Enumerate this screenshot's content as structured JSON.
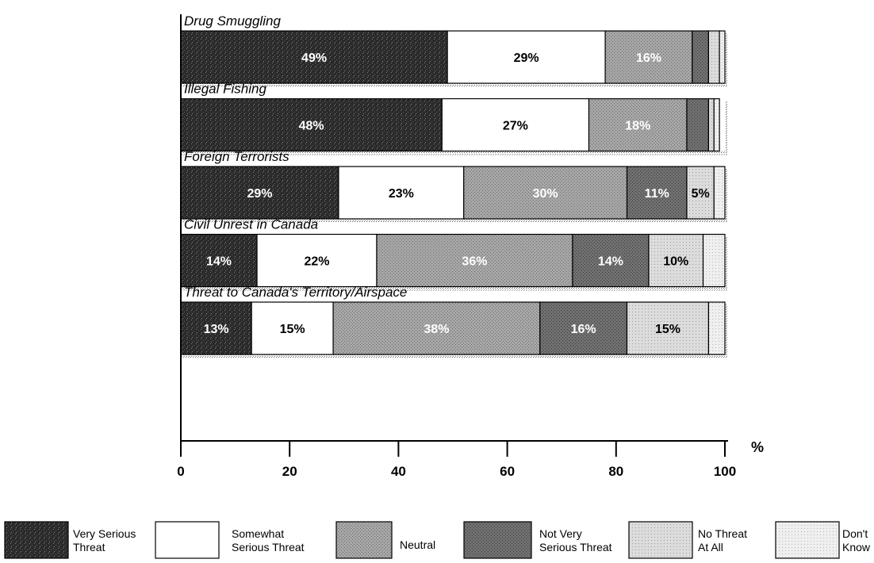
{
  "chart_data": {
    "type": "bar",
    "orientation": "horizontal",
    "stacked": true,
    "categories": [
      "Drug Smuggling",
      "Illegal Fishing",
      "Foreign Terrorists",
      "Civil Unrest in Canada",
      "Threat to Canada's Territory/Airspace"
    ],
    "series": [
      {
        "name": "Very Serious Threat",
        "values": [
          49,
          48,
          29,
          14,
          13
        ],
        "color": "#2b2b2b"
      },
      {
        "name": "Somewhat Serious Threat",
        "values": [
          29,
          27,
          23,
          22,
          15
        ],
        "color": "#ffffff"
      },
      {
        "name": "Neutral",
        "values": [
          16,
          18,
          30,
          36,
          38
        ],
        "color": "#9a9a9a"
      },
      {
        "name": "Not Very Serious Threat",
        "values": [
          3,
          4,
          11,
          14,
          16
        ],
        "color": "#6a6a6a"
      },
      {
        "name": "No Threat At All",
        "values": [
          2,
          1,
          5,
          10,
          15
        ],
        "color": "#d6d6d6"
      },
      {
        "name": "Don't Know",
        "values": [
          1,
          1,
          2,
          4,
          3
        ],
        "color": "#ececec"
      }
    ],
    "data_labels": [
      [
        "49%",
        "29%",
        "16%",
        "",
        "",
        ""
      ],
      [
        "48%",
        "27%",
        "18%",
        "",
        "",
        ""
      ],
      [
        "29%",
        "23%",
        "30%",
        "11%",
        "5%",
        ""
      ],
      [
        "14%",
        "22%",
        "36%",
        "14%",
        "10%",
        ""
      ],
      [
        "13%",
        "15%",
        "38%",
        "16%",
        "15%",
        ""
      ]
    ],
    "xticks": [
      "0",
      "20",
      "40",
      "60",
      "80",
      "100"
    ],
    "xlim": [
      0,
      100
    ],
    "unit_label": "%",
    "legend_position": "bottom",
    "legend": [
      {
        "lines": [
          "Very Serious",
          "Threat"
        ]
      },
      {
        "lines": [
          "Somewhat",
          "Serious Threat"
        ]
      },
      {
        "lines": [
          "Neutral"
        ]
      },
      {
        "lines": [
          "Not Very",
          "Serious Threat"
        ]
      },
      {
        "lines": [
          "No Threat",
          "At All"
        ]
      },
      {
        "lines": [
          "Don't",
          "Know"
        ]
      }
    ],
    "grid": false
  }
}
